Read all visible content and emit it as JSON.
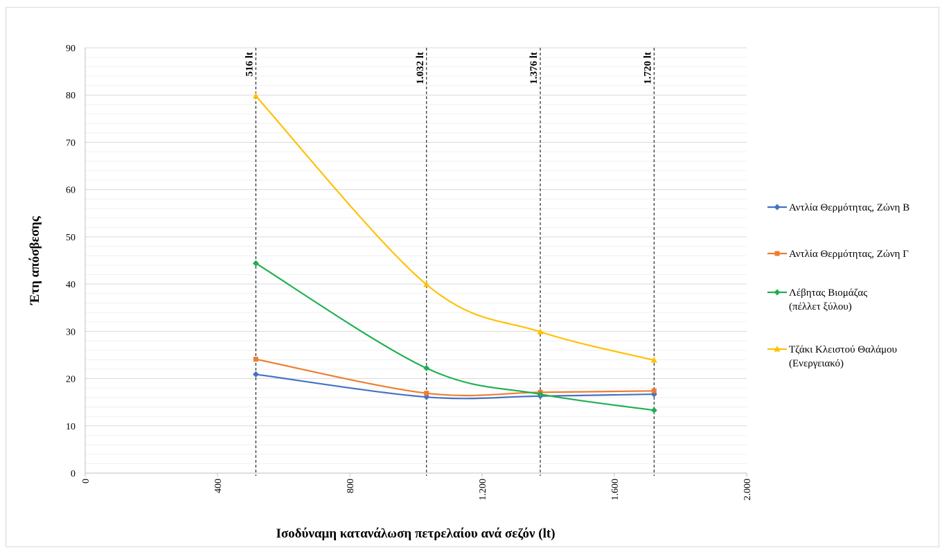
{
  "chart_data": {
    "type": "line",
    "title": "",
    "xlabel": "Ισοδύναμη κατανάλωση πετρελαίου ανά σεζόν (lt)",
    "ylabel": "Έτη απόσβεσης",
    "xlim": [
      0,
      2000
    ],
    "ylim": [
      0,
      90
    ],
    "x_ticks": [
      0,
      400,
      800,
      1200,
      1600,
      2000
    ],
    "x_tick_labels": [
      "0",
      "400",
      "800",
      "1.200",
      "1.600",
      "2.000"
    ],
    "y_ticks": [
      0,
      10,
      20,
      30,
      40,
      50,
      60,
      70,
      80,
      90
    ],
    "y_tick_labels": [
      "0",
      "10",
      "20",
      "30",
      "40",
      "50",
      "60",
      "70",
      "80",
      "90"
    ],
    "grid": true,
    "smooth": true,
    "legend_position": "right",
    "x": [
      516,
      1032,
      1376,
      1720
    ],
    "reference_lines": [
      {
        "x": 516,
        "label": "516 lt"
      },
      {
        "x": 1032,
        "label": "1.032 lt"
      },
      {
        "x": 1376,
        "label": "1.376 lt"
      },
      {
        "x": 1720,
        "label": "1.720 lt"
      }
    ],
    "series": [
      {
        "name": "Αντλία Θερμότητας, Ζώνη Β",
        "name_lines": [
          "Αντλία Θερμότητας, Ζώνη Β"
        ],
        "color": "#4472c4",
        "marker": "diamond",
        "values": [
          20.9,
          16.1,
          16.3,
          16.7
        ]
      },
      {
        "name": "Αντλία Θερμότητας, Ζώνη Γ",
        "name_lines": [
          "Αντλία Θερμότητας, Ζώνη Γ"
        ],
        "color": "#ed7d31",
        "marker": "square",
        "values": [
          24.1,
          16.9,
          17.1,
          17.4
        ]
      },
      {
        "name": "Λέβητας Βιομάζας (πέλλετ ξύλου)",
        "name_lines": [
          "Λέβητας Βιομάζας",
          "(πέλλετ ξύλου)"
        ],
        "color": "#1fb050",
        "marker": "diamond",
        "values": [
          44.4,
          22.2,
          16.7,
          13.3
        ]
      },
      {
        "name": "Τζάκι Κλειστού Θαλάμου (Ενεργειακό)",
        "name_lines": [
          "Τζάκι Κλειστού Θαλάμου",
          "(Ενεργειακό)"
        ],
        "color": "#ffc000",
        "marker": "triangle",
        "values": [
          79.8,
          39.9,
          29.9,
          23.9
        ]
      }
    ]
  }
}
